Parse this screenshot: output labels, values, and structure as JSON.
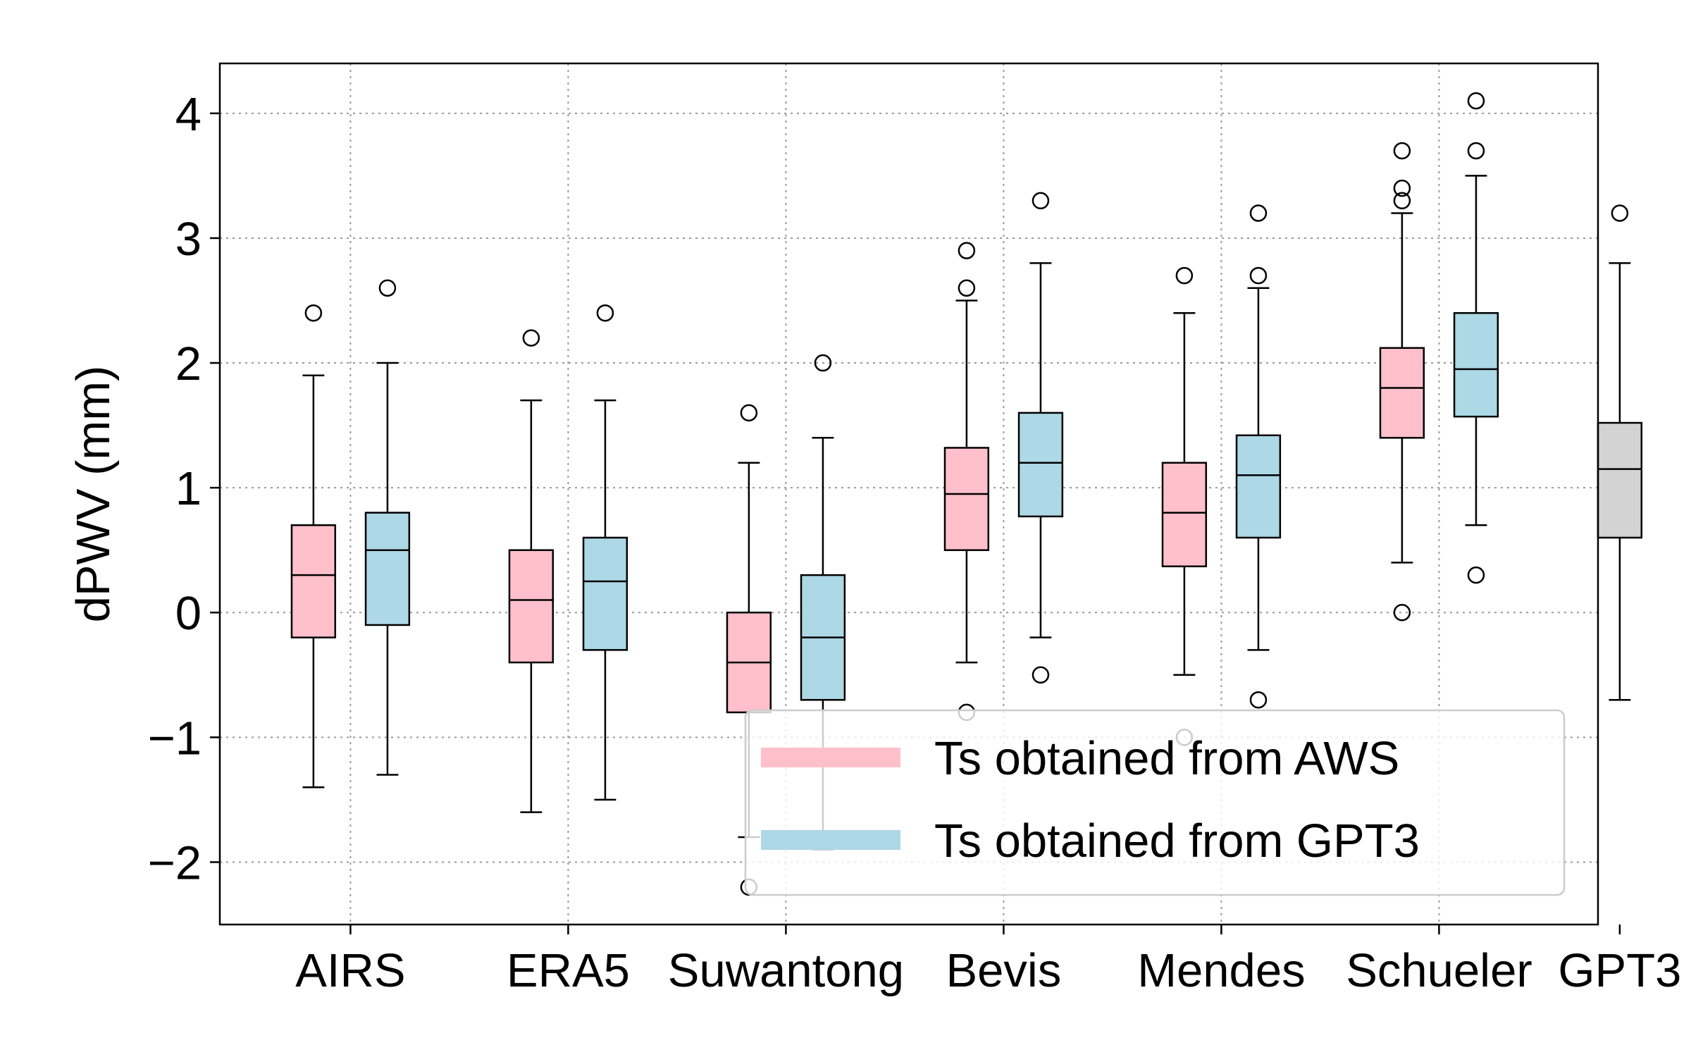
{
  "chart_data": {
    "type": "box",
    "title": "",
    "xlabel": "",
    "ylabel": "dPWV (mm)",
    "ylim": [
      -2.5,
      4.4
    ],
    "yticks": [
      -2,
      -1,
      0,
      1,
      2,
      3,
      4
    ],
    "ytick_labels": [
      "−2",
      "−1",
      "0",
      "1",
      "2",
      "3",
      "4"
    ],
    "grid": true,
    "legend_position": "lower-right",
    "categories": [
      "AIRS",
      "ERA5",
      "Suwantong",
      "Bevis",
      "Mendes",
      "Schueler",
      "GPT3"
    ],
    "series": [
      {
        "name": "Ts obtained from AWS",
        "color": "#ffc0cb",
        "boxes": [
          {
            "category": "AIRS",
            "whisker_low": -1.4,
            "q1": -0.2,
            "median": 0.3,
            "q3": 0.7,
            "whisker_high": 1.9,
            "outliers": [
              2.4
            ]
          },
          {
            "category": "ERA5",
            "whisker_low": -1.6,
            "q1": -0.4,
            "median": 0.1,
            "q3": 0.5,
            "whisker_high": 1.7,
            "outliers": [
              2.2
            ]
          },
          {
            "category": "Suwantong",
            "whisker_low": -1.8,
            "q1": -0.8,
            "median": -0.4,
            "q3": 0.0,
            "whisker_high": 1.2,
            "outliers": [
              -2.2,
              1.6
            ]
          },
          {
            "category": "Bevis",
            "whisker_low": -0.4,
            "q1": 0.5,
            "median": 0.95,
            "q3": 1.32,
            "whisker_high": 2.5,
            "outliers": [
              -0.8,
              2.6,
              2.9
            ]
          },
          {
            "category": "Mendes",
            "whisker_low": -0.5,
            "q1": 0.37,
            "median": 0.8,
            "q3": 1.2,
            "whisker_high": 2.4,
            "outliers": [
              -1.0,
              2.7
            ]
          },
          {
            "category": "Schueler",
            "whisker_low": 0.4,
            "q1": 1.4,
            "median": 1.8,
            "q3": 2.12,
            "whisker_high": 3.2,
            "outliers": [
              0.0,
              3.3,
              3.4,
              3.7
            ]
          }
        ]
      },
      {
        "name": "Ts obtained from GPT3",
        "color": "#add8e6",
        "boxes": [
          {
            "category": "AIRS",
            "whisker_low": -1.3,
            "q1": -0.1,
            "median": 0.5,
            "q3": 0.8,
            "whisker_high": 2.0,
            "outliers": [
              2.6
            ]
          },
          {
            "category": "ERA5",
            "whisker_low": -1.5,
            "q1": -0.3,
            "median": 0.25,
            "q3": 0.6,
            "whisker_high": 1.7,
            "outliers": [
              2.4
            ]
          },
          {
            "category": "Suwantong",
            "whisker_low": -1.9,
            "q1": -0.7,
            "median": -0.2,
            "q3": 0.3,
            "whisker_high": 1.4,
            "outliers": [
              2.0
            ]
          },
          {
            "category": "Bevis",
            "whisker_low": -0.2,
            "q1": 0.77,
            "median": 1.2,
            "q3": 1.6,
            "whisker_high": 2.8,
            "outliers": [
              -0.5,
              3.3
            ]
          },
          {
            "category": "Mendes",
            "whisker_low": -0.3,
            "q1": 0.6,
            "median": 1.1,
            "q3": 1.42,
            "whisker_high": 2.6,
            "outliers": [
              -0.7,
              2.7,
              3.2
            ]
          },
          {
            "category": "Schueler",
            "whisker_low": 0.7,
            "q1": 1.57,
            "median": 1.95,
            "q3": 2.4,
            "whisker_high": 3.5,
            "outliers": [
              0.3,
              3.7,
              4.1
            ]
          }
        ]
      },
      {
        "name": "GPT3",
        "color": "#d3d3d3",
        "boxes": [
          {
            "category": "GPT3",
            "whisker_low": -0.7,
            "q1": 0.6,
            "median": 1.15,
            "q3": 1.52,
            "whisker_high": 2.8,
            "outliers": [
              3.2
            ]
          }
        ]
      }
    ],
    "legend": [
      {
        "label": "Ts obtained from AWS",
        "color": "#ffc0cb"
      },
      {
        "label": "Ts obtained from GPT3",
        "color": "#add8e6"
      }
    ]
  }
}
